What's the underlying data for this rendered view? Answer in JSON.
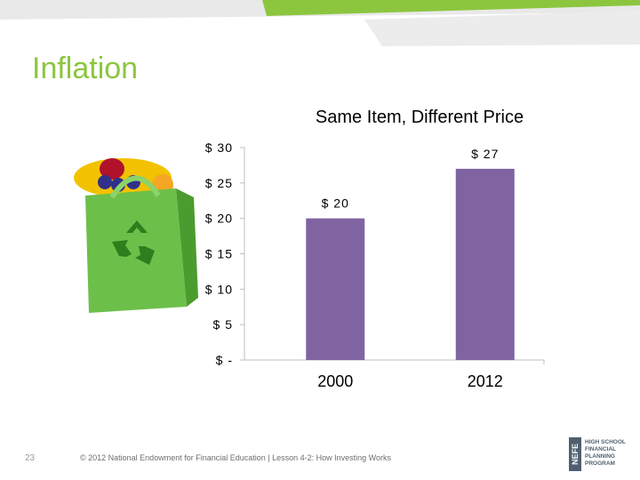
{
  "slide": {
    "title": "Inflation",
    "page_number": "23",
    "footer": "© 2012 National Endowment for Financial Education | Lesson 4-2: How Investing Works",
    "logo": {
      "mark": "NEFE",
      "lines": [
        "HIGH SCHOOL",
        "FINANCIAL",
        "PLANNING",
        "PROGRAM"
      ]
    },
    "image_icon": "grocery-bag-icon"
  },
  "colors": {
    "title": "#8cc63f",
    "bar": "#8064a2",
    "strip_green": "#8cc63f",
    "strip_gray": "#e6e6e6"
  },
  "chart_data": {
    "type": "bar",
    "title": "Same Item, Different Price",
    "categories": [
      "2000",
      "2012"
    ],
    "values": [
      20,
      27
    ],
    "data_labels": [
      "$ 20",
      "$ 27"
    ],
    "ylim": [
      0,
      30
    ],
    "yticks": [
      0,
      5,
      10,
      15,
      20,
      25,
      30
    ],
    "ytick_labels": [
      "$ -",
      "$ 5",
      "$ 10",
      "$ 15",
      "$ 20",
      "$ 25",
      "$ 30"
    ],
    "grid": false,
    "legend": false
  }
}
